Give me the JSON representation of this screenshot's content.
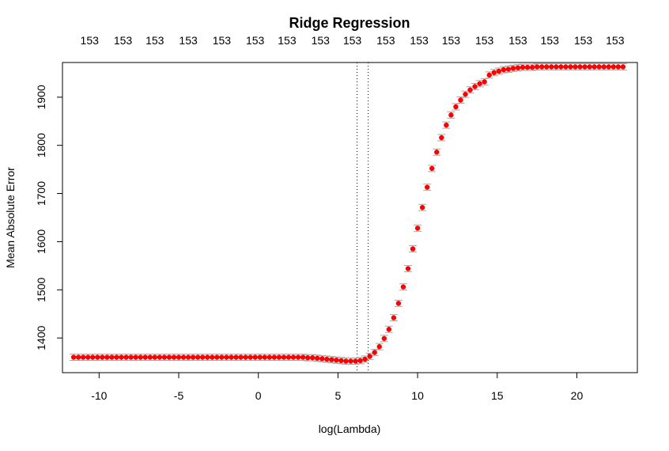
{
  "chart_data": {
    "type": "scatter",
    "title": "Ridge Regression",
    "xlabel": "log(Lambda)",
    "ylabel": "Mean Absolute Error",
    "xlim": [
      -12.3,
      23.8
    ],
    "ylim": [
      1328,
      1972
    ],
    "x_ticks": [
      -10,
      -5,
      0,
      5,
      10,
      15,
      20
    ],
    "y_ticks": [
      1400,
      1500,
      1600,
      1700,
      1800,
      1900
    ],
    "top_axis_labels": [
      "153",
      "153",
      "153",
      "153",
      "153",
      "153",
      "153",
      "153",
      "153",
      "153",
      "153",
      "153",
      "153",
      "153",
      "153",
      "153",
      "153"
    ],
    "top_axis_x": [
      -10.6,
      -8.5,
      -6.5,
      -4.4,
      -2.3,
      -0.2,
      1.8,
      3.9,
      5.9,
      8.0,
      10.1,
      12.1,
      14.2,
      16.3,
      18.3,
      20.4,
      22.4
    ],
    "vlines": [
      6.2,
      6.9
    ],
    "series": [
      {
        "x": [
          -11.6,
          -11.3,
          -11.0,
          -10.7,
          -10.4,
          -10.1,
          -9.8,
          -9.5,
          -9.2,
          -8.9,
          -8.6,
          -8.3,
          -8.0,
          -7.7,
          -7.4,
          -7.1,
          -6.8,
          -6.5,
          -6.2,
          -5.9,
          -5.6,
          -5.3,
          -5.0,
          -4.7,
          -4.4,
          -4.1,
          -3.8,
          -3.5,
          -3.2,
          -2.9,
          -2.6,
          -2.3,
          -2.0,
          -1.7,
          -1.4,
          -1.1,
          -0.8,
          -0.5,
          -0.2,
          0.1,
          0.4,
          0.7,
          1.0,
          1.3,
          1.6,
          1.9,
          2.2,
          2.5,
          2.8,
          3.1,
          3.4,
          3.7,
          4.0,
          4.3,
          4.6,
          4.9,
          5.2,
          5.5,
          5.8,
          6.1,
          6.4,
          6.7,
          7.0,
          7.3,
          7.6,
          7.9,
          8.2,
          8.5,
          8.8,
          9.1,
          9.4,
          9.7,
          10.0,
          10.3,
          10.6,
          10.9,
          11.2,
          11.5,
          11.8,
          12.1,
          12.4,
          12.7,
          13.0,
          13.3,
          13.6,
          13.9,
          14.2,
          14.5,
          14.8,
          15.1,
          15.4,
          15.7,
          16.0,
          16.3,
          16.6,
          16.9,
          17.2,
          17.5,
          17.8,
          18.1,
          18.4,
          18.7,
          19.0,
          19.3,
          19.6,
          19.9,
          20.2,
          20.5,
          20.8,
          21.1,
          21.4,
          21.7,
          22.0,
          22.3,
          22.6,
          22.9
        ],
        "y": [
          1360,
          1360,
          1360,
          1360,
          1360,
          1360,
          1360,
          1360,
          1360,
          1360,
          1360,
          1360,
          1360,
          1360,
          1360,
          1360,
          1360,
          1360,
          1360,
          1360,
          1360,
          1360,
          1360,
          1360,
          1360,
          1360,
          1360,
          1360,
          1360,
          1360,
          1360,
          1360,
          1360,
          1360,
          1360,
          1360,
          1360,
          1360,
          1360,
          1360,
          1360,
          1360,
          1360,
          1360,
          1360,
          1360,
          1360,
          1360,
          1360,
          1359,
          1359,
          1358,
          1357,
          1356,
          1355,
          1354,
          1353,
          1352,
          1352,
          1352,
          1353,
          1356,
          1362,
          1370,
          1382,
          1399,
          1418,
          1442,
          1472,
          1506,
          1544,
          1585,
          1628,
          1671,
          1713,
          1752,
          1786,
          1816,
          1842,
          1863,
          1880,
          1894,
          1906,
          1915,
          1922,
          1928,
          1932,
          1946,
          1951,
          1954,
          1957,
          1958,
          1960,
          1961,
          1962,
          1962,
          1962,
          1963,
          1963,
          1963,
          1963,
          1963,
          1963,
          1963,
          1963,
          1963,
          1963,
          1963,
          1963,
          1963,
          1963,
          1963,
          1963,
          1963,
          1963,
          1963
        ],
        "color": "#ff0000",
        "errorbar_color": "#a6a6a6"
      }
    ]
  }
}
